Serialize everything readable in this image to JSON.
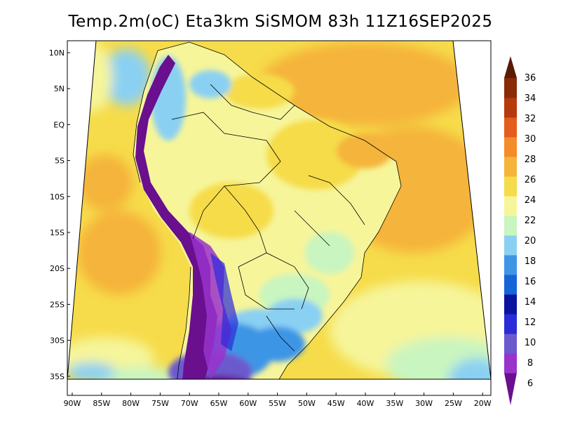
{
  "title": "Temp.2m(oC) Eta3km SiSMOM 83h 11Z16SEP2025",
  "map": {
    "lat_labels": [
      "10N",
      "5N",
      "EQ",
      "5S",
      "10S",
      "15S",
      "20S",
      "25S",
      "30S",
      "35S"
    ],
    "lon_labels": [
      "90W",
      "85W",
      "80W",
      "75W",
      "70W",
      "65W",
      "60W",
      "55W",
      "50W",
      "45W",
      "40W",
      "35W",
      "30W",
      "25W",
      "20W"
    ]
  },
  "colorbar": {
    "labels": [
      "6",
      "8",
      "10",
      "12",
      "14",
      "16",
      "18",
      "20",
      "22",
      "24",
      "26",
      "28",
      "30",
      "32",
      "34",
      "36"
    ],
    "colors": [
      "#6a0f8e",
      "#9933cc",
      "#6a5acd",
      "#2b2bd8",
      "#0a14a0",
      "#1565d6",
      "#3e95e6",
      "#8ad0f3",
      "#c9f5c0",
      "#f6f59a",
      "#f6dc4a",
      "#f5b43a",
      "#f58c2c",
      "#e35d1c",
      "#b73a0c",
      "#8a2a08",
      "#5a1b06"
    ],
    "min_label": "6",
    "max_label": "36"
  },
  "legend_colors": {
    "ocean_warm": "#f5b43a",
    "ocean_mid": "#f6dc4a",
    "land_main": "#f6f59a",
    "andes_cold": "#6a0f8e"
  }
}
